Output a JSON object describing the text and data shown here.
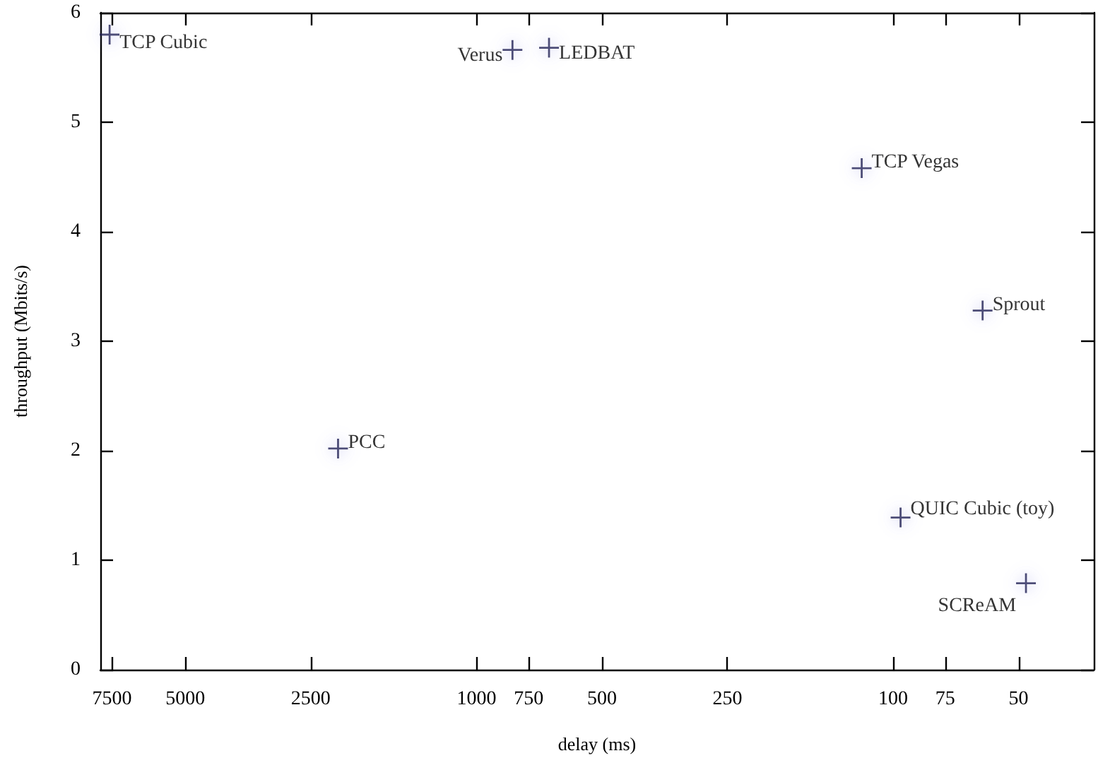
{
  "chart_data": {
    "type": "scatter",
    "xlabel": "delay (ms)",
    "ylabel": "throughput (Mbits/s)",
    "log": "x",
    "xlim": [
      8000,
      33
    ],
    "xticks": [
      7500,
      5000,
      2500,
      1000,
      750,
      500,
      250,
      100,
      75,
      50
    ],
    "ylim": [
      0,
      6
    ],
    "yticks": [
      0,
      1,
      2,
      3,
      4,
      5,
      6
    ],
    "grid": false,
    "legend": false,
    "marker": "cross",
    "series": [
      {
        "name": "TCP Cubic",
        "color": "#1a1a50",
        "x": [
          7600
        ],
        "values": [
          5.8
        ]
      },
      {
        "name": "Verus",
        "color": "#1a1a50",
        "x": [
          820
        ],
        "values": [
          5.66
        ]
      },
      {
        "name": "LEDBAT",
        "color": "#1a1a50",
        "x": [
          670
        ],
        "values": [
          5.68
        ]
      },
      {
        "name": "TCP Vegas",
        "color": "#1a1a50",
        "x": [
          119
        ],
        "values": [
          4.58
        ]
      },
      {
        "name": "Sprout",
        "color": "#1a1a50",
        "x": [
          61
        ],
        "values": [
          3.28
        ]
      },
      {
        "name": "PCC",
        "color": "#1a1a50",
        "x": [
          2150
        ],
        "values": [
          2.02
        ]
      },
      {
        "name": "QUIC Cubic (toy)",
        "color": "#1a1a50",
        "x": [
          96
        ],
        "values": [
          1.39
        ]
      },
      {
        "name": "SCReAM",
        "color": "#1a1a50",
        "x": [
          48
        ],
        "values": [
          0.79
        ]
      }
    ]
  }
}
